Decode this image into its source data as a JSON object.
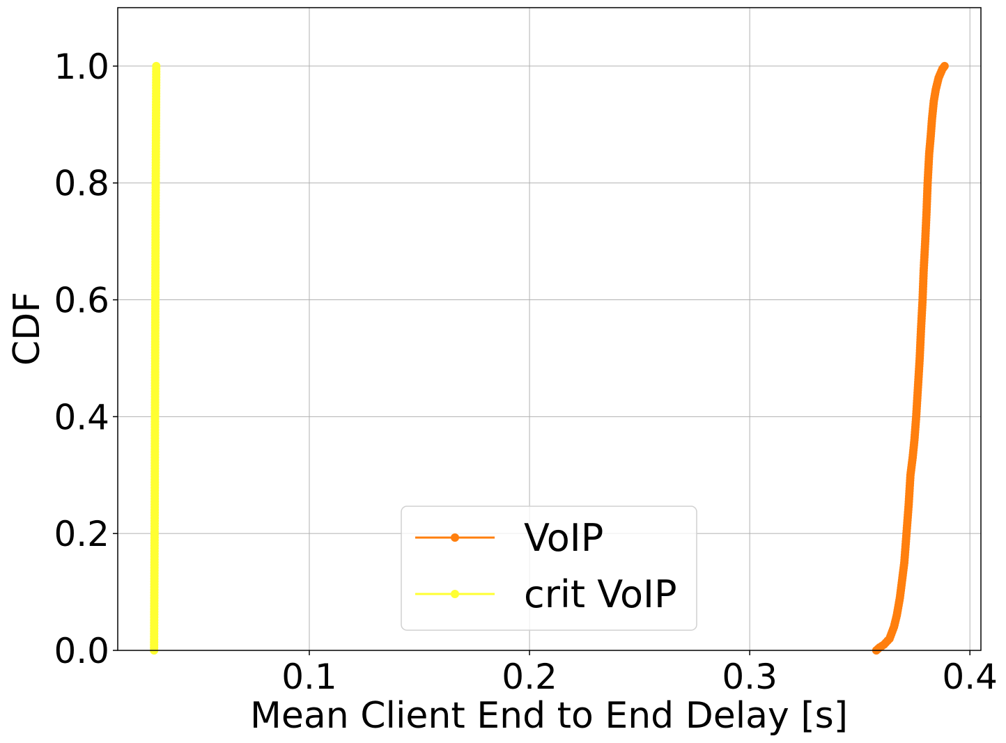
{
  "chart_data": {
    "type": "line",
    "xlabel": "Mean Client End to End Delay [s]",
    "ylabel": "CDF",
    "xlim": [
      0.013,
      0.405
    ],
    "ylim": [
      0.0,
      1.1
    ],
    "xticks": [
      0.1,
      0.2,
      0.3,
      0.4
    ],
    "xtick_labels": [
      "0.1",
      "0.2",
      "0.3",
      "0.4"
    ],
    "yticks": [
      0.0,
      0.2,
      0.4,
      0.6,
      0.8,
      1.0
    ],
    "ytick_labels": [
      "0.0",
      "0.2",
      "0.4",
      "0.6",
      "0.8",
      "1.0"
    ],
    "grid": true,
    "legend_position": "lower-center",
    "series": [
      {
        "name": "VoIP",
        "color": "#ff7f0e",
        "marker": "circle",
        "x": [
          0.3575,
          0.359,
          0.361,
          0.3635,
          0.3655,
          0.3668,
          0.3682,
          0.3692,
          0.3702,
          0.3712,
          0.3722,
          0.373,
          0.374,
          0.3748,
          0.3756,
          0.3764,
          0.3772,
          0.3778,
          0.3785,
          0.379,
          0.3797,
          0.3803,
          0.3808,
          0.3815,
          0.3822,
          0.3828,
          0.3836,
          0.3845,
          0.3858,
          0.3875,
          0.3885
        ],
        "y": [
          0.0,
          0.005,
          0.01,
          0.02,
          0.04,
          0.06,
          0.09,
          0.12,
          0.15,
          0.2,
          0.25,
          0.3,
          0.33,
          0.36,
          0.4,
          0.45,
          0.5,
          0.55,
          0.6,
          0.65,
          0.7,
          0.75,
          0.8,
          0.85,
          0.88,
          0.91,
          0.94,
          0.96,
          0.98,
          0.995,
          1.0
        ]
      },
      {
        "name": "crit VoIP",
        "color": "#ffff33",
        "marker": "circle",
        "x": [
          0.0295,
          0.0298,
          0.03,
          0.0302,
          0.0305
        ],
        "y": [
          0.0,
          0.25,
          0.5,
          0.75,
          1.0
        ]
      }
    ]
  }
}
